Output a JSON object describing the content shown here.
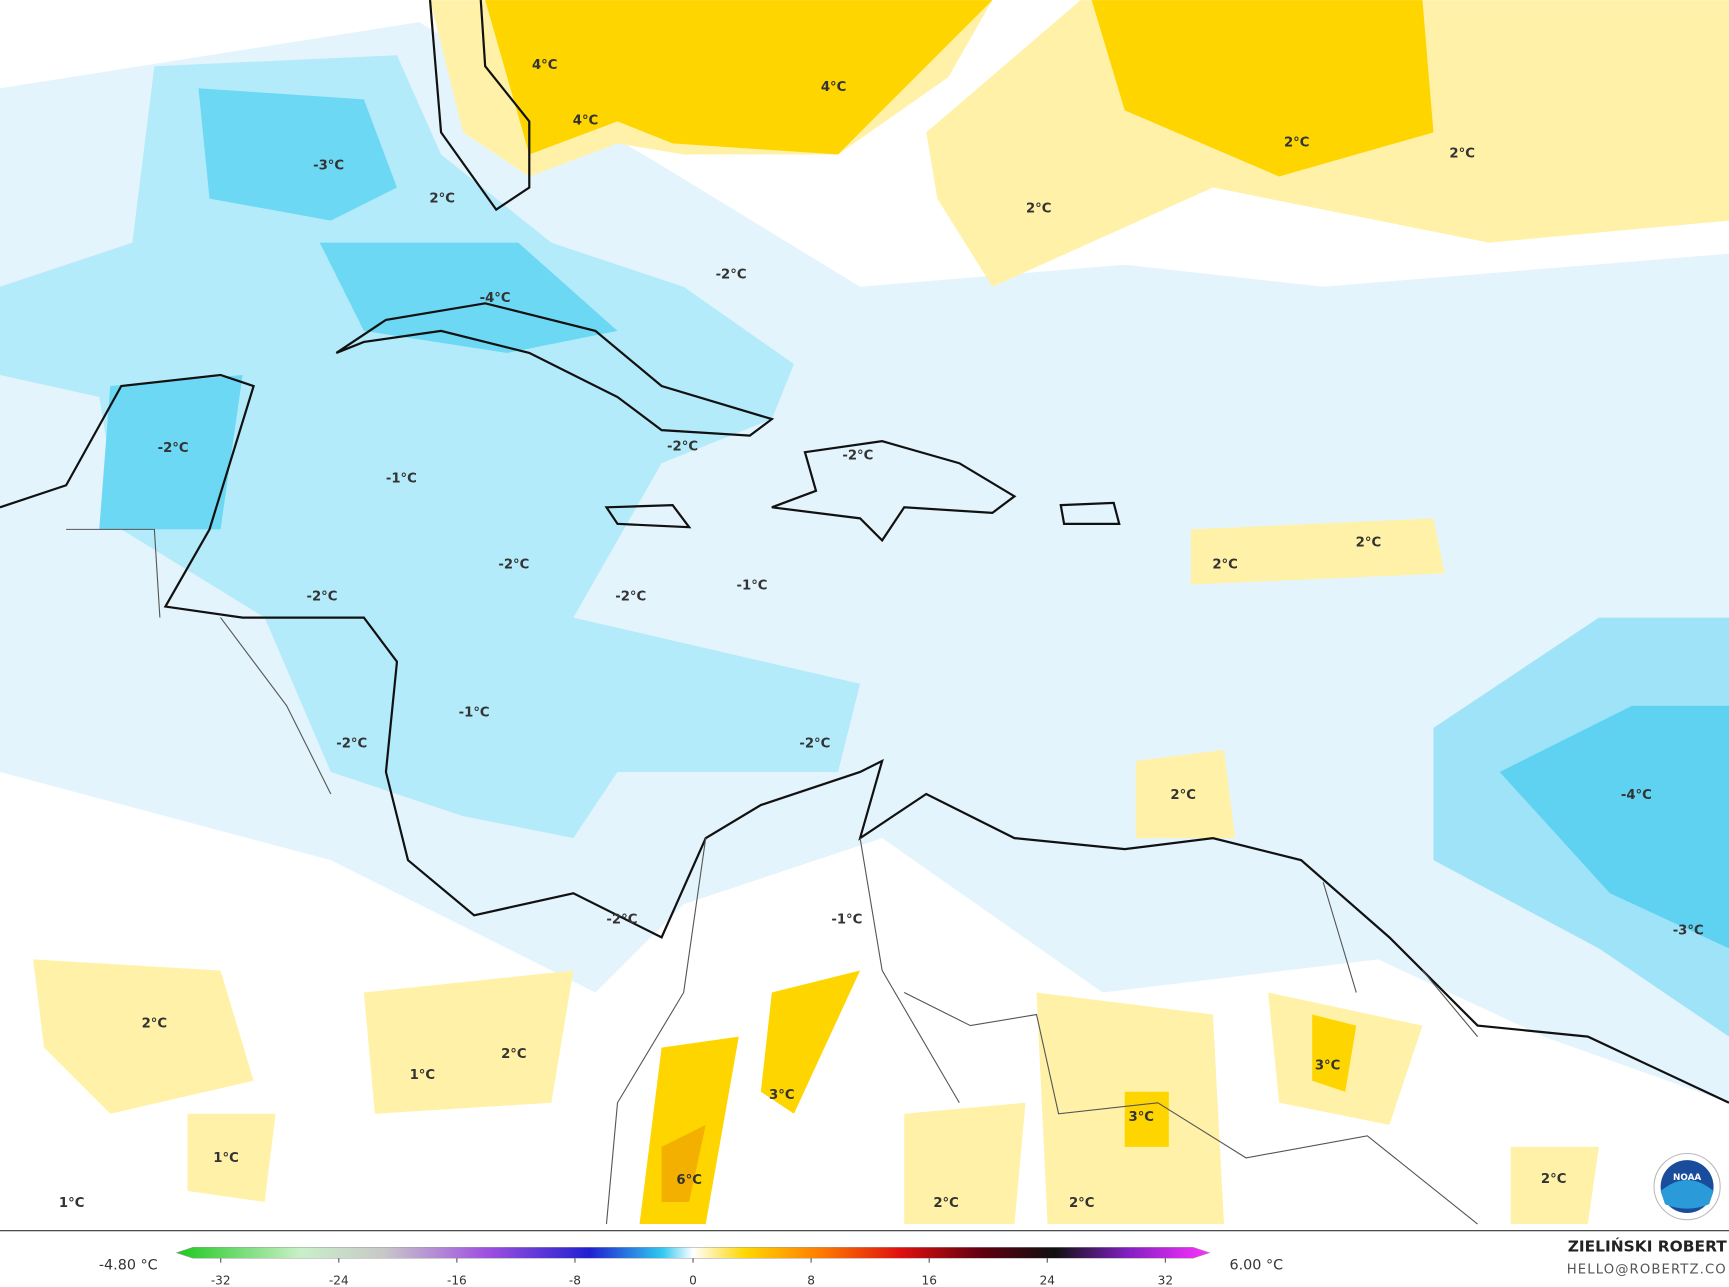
{
  "contour_labels": [
    "4°C",
    "4°C",
    "4°C",
    "2°C",
    "2°C",
    "-3°C",
    "2°C",
    "2°C",
    "-2°C",
    "-4°C",
    "-2°C",
    "-2°C",
    "-2°C",
    "-1°C",
    "2°C",
    "2°C",
    "-2°C",
    "-1°C",
    "-2°C",
    "-2°C",
    "-1°C",
    "-2°C",
    "-2°C",
    "2°C",
    "-4°C",
    "-2°C",
    "-1°C",
    "-3°C",
    "2°C",
    "2°C",
    "1°C",
    "3°C",
    "3°C",
    "3°C",
    "1°C",
    "6°C",
    "2°C",
    "1°C",
    "2°C",
    "2°C"
  ],
  "colorbar": {
    "min_label": "-4.80 °C",
    "max_label": "6.00 °C",
    "ticks": [
      -32,
      -24,
      -16,
      -8,
      0,
      8,
      16,
      24,
      32
    ],
    "range": [
      -35,
      35
    ]
  },
  "credits": {
    "author": "ZIELIŃSKI ROBERT",
    "contact": "HELLO@ROBERTZ.CO"
  },
  "logo": "NOAA"
}
